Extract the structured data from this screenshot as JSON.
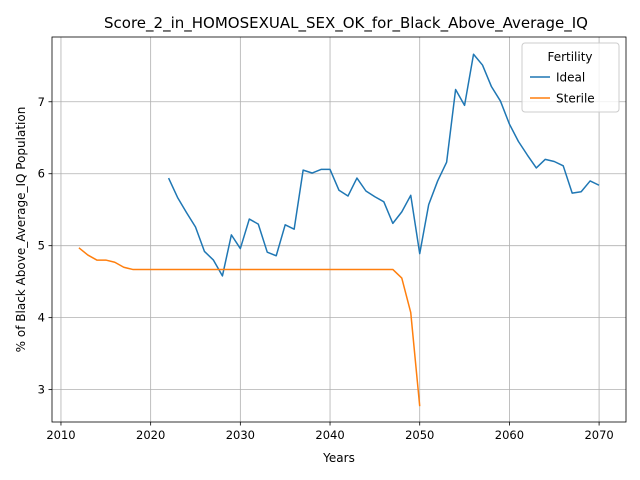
{
  "chart_data": {
    "type": "line",
    "title": "Score_2_in_HOMOSEXUAL_SEX_OK_for_Black_Above_Average_IQ",
    "xlabel": "Years",
    "ylabel": "% of Black Above_Average_IQ Population",
    "xlim": [
      2009,
      2073
    ],
    "ylim": [
      2.55,
      7.9
    ],
    "xticks": [
      2010,
      2020,
      2030,
      2040,
      2050,
      2060,
      2070
    ],
    "yticks": [
      3,
      4,
      5,
      6,
      7
    ],
    "grid": true,
    "legend": {
      "title": "Fertility",
      "position": "top-right"
    },
    "series": [
      {
        "name": "Ideal",
        "color": "#1f77b4",
        "x": [
          2022,
          2023,
          2024,
          2025,
          2026,
          2027,
          2028,
          2029,
          2030,
          2031,
          2032,
          2033,
          2034,
          2035,
          2036,
          2037,
          2038,
          2039,
          2040,
          2041,
          2042,
          2043,
          2044,
          2045,
          2046,
          2047,
          2048,
          2049,
          2050,
          2051,
          2052,
          2053,
          2054,
          2055,
          2056,
          2057,
          2058,
          2059,
          2060,
          2061,
          2062,
          2063,
          2064,
          2065,
          2066,
          2067,
          2068,
          2069,
          2070
        ],
        "values": [
          5.94,
          5.67,
          5.46,
          5.26,
          4.92,
          4.8,
          4.58,
          5.15,
          4.96,
          5.37,
          5.3,
          4.91,
          4.86,
          5.29,
          5.23,
          6.05,
          6.01,
          6.06,
          6.06,
          5.77,
          5.69,
          5.94,
          5.76,
          5.68,
          5.61,
          5.31,
          5.47,
          5.7,
          4.89,
          5.57,
          5.9,
          6.16,
          7.17,
          6.95,
          7.66,
          7.51,
          7.21,
          7.01,
          6.69,
          6.45,
          6.26,
          6.08,
          6.2,
          6.17,
          6.11,
          5.73,
          5.75,
          5.9,
          5.84
        ]
      },
      {
        "name": "Sterile",
        "color": "#ff7f0e",
        "x": [
          2012,
          2013,
          2014,
          2015,
          2016,
          2017,
          2018,
          2019,
          2020,
          2021,
          2022,
          2023,
          2024,
          2025,
          2026,
          2027,
          2028,
          2029,
          2030,
          2031,
          2032,
          2033,
          2034,
          2035,
          2036,
          2037,
          2038,
          2039,
          2040,
          2041,
          2042,
          2043,
          2044,
          2045,
          2046,
          2047,
          2048,
          2049,
          2050
        ],
        "values": [
          4.97,
          4.87,
          4.8,
          4.8,
          4.77,
          4.7,
          4.67,
          4.67,
          4.67,
          4.67,
          4.67,
          4.67,
          4.67,
          4.67,
          4.67,
          4.67,
          4.67,
          4.67,
          4.67,
          4.67,
          4.67,
          4.67,
          4.67,
          4.67,
          4.67,
          4.67,
          4.67,
          4.67,
          4.67,
          4.67,
          4.67,
          4.67,
          4.67,
          4.67,
          4.67,
          4.67,
          4.55,
          4.07,
          2.77
        ]
      }
    ]
  }
}
